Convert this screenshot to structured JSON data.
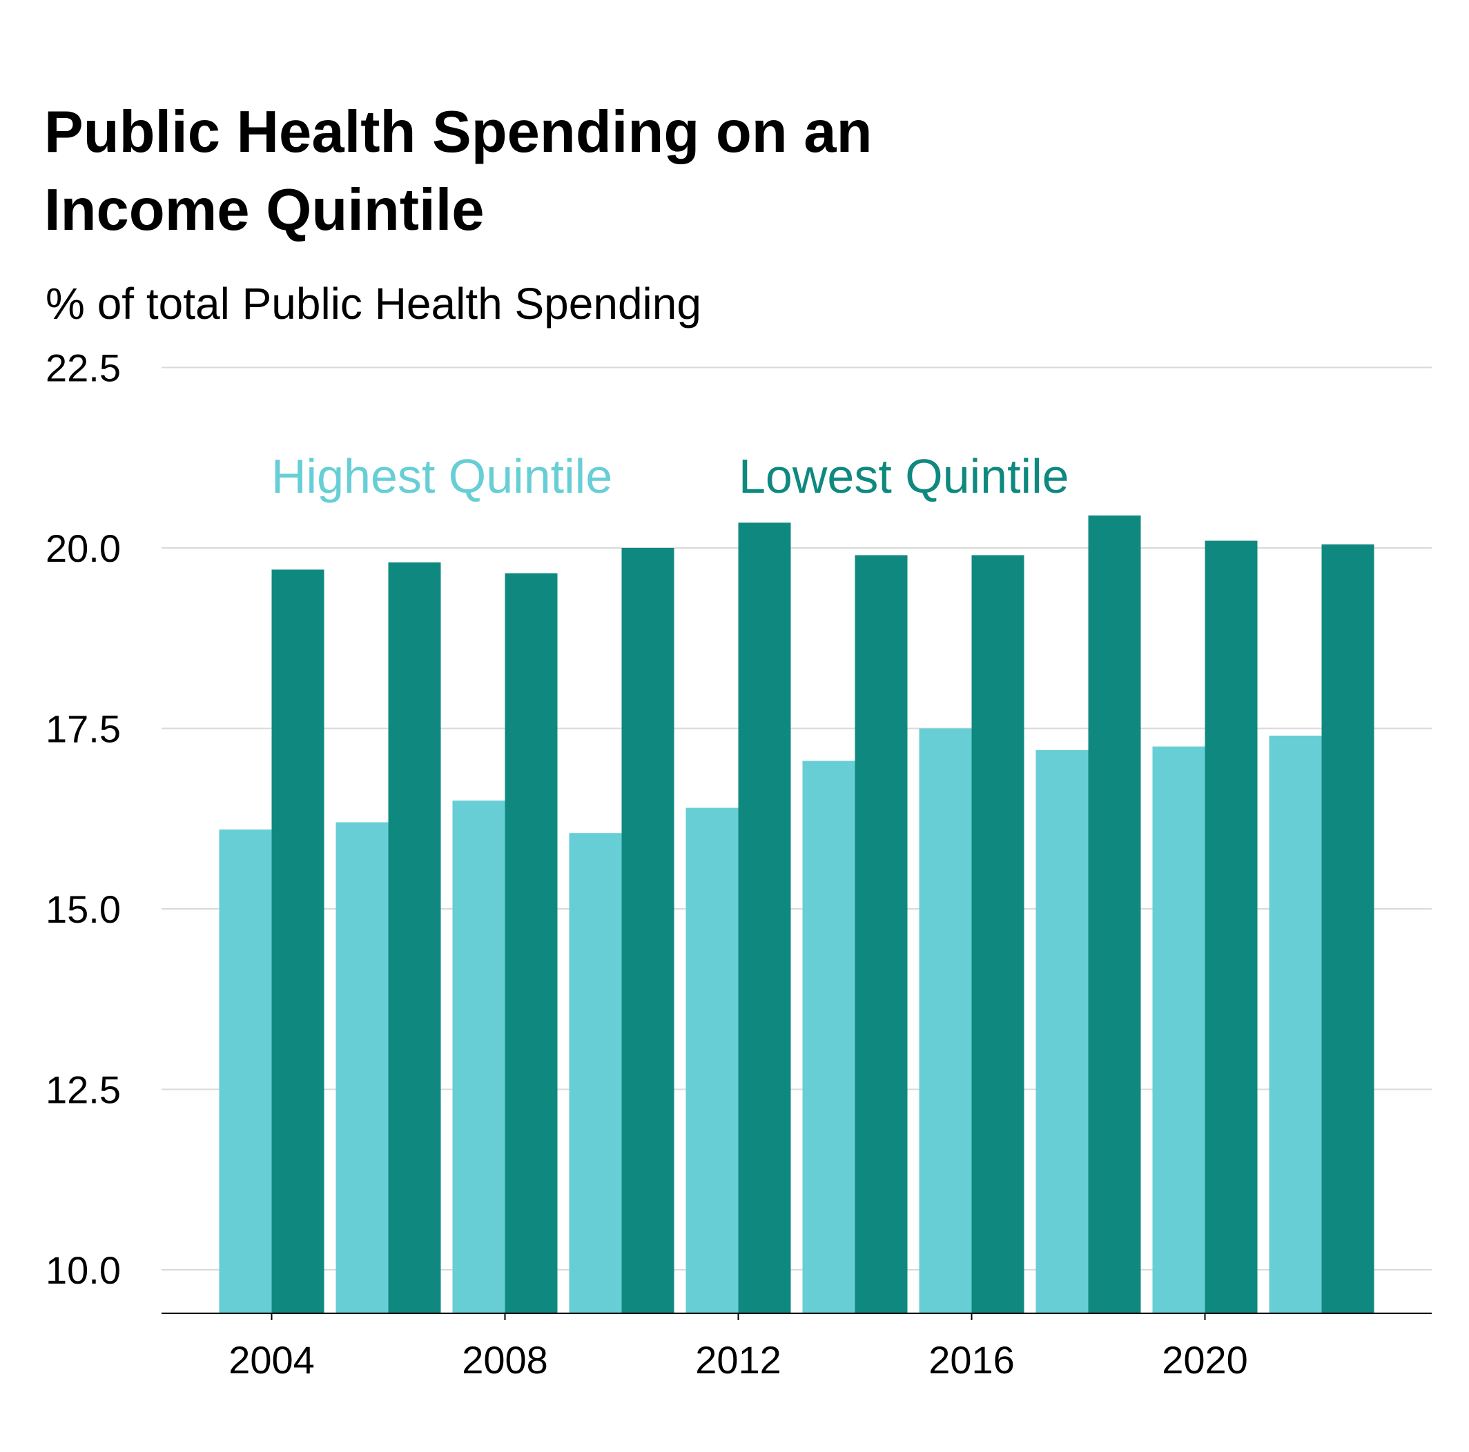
{
  "chart_data": {
    "type": "bar",
    "title_line1": "Public Health Spending on an",
    "title_line2": "Income Quintile",
    "subtitle": "% of total Public Health Spending",
    "xlabel": "",
    "ylabel": "",
    "x": [
      2004,
      2006,
      2008,
      2010,
      2012,
      2014,
      2016,
      2018,
      2020,
      2022
    ],
    "x_ticks": [
      2004,
      2008,
      2012,
      2016,
      2020
    ],
    "x_tick_labels": [
      "2004",
      "2008",
      "2012",
      "2016",
      "2020"
    ],
    "y_ticks": [
      10.0,
      12.5,
      15.0,
      17.5,
      20.0,
      22.5
    ],
    "y_tick_labels": [
      "10.0",
      "12.5",
      "15.0",
      "17.5",
      "20.0",
      "22.5"
    ],
    "ylim": [
      9.4,
      22.5
    ],
    "grid": true,
    "legend_placement": "inline-top",
    "series": [
      {
        "name": "Highest Quintile",
        "color": "#67ced6",
        "values": [
          16.1,
          16.2,
          16.5,
          16.05,
          16.4,
          17.05,
          17.5,
          17.2,
          17.25,
          17.4
        ]
      },
      {
        "name": "Lowest Quintile",
        "color": "#0f897f",
        "values": [
          19.7,
          19.8,
          19.65,
          20.0,
          20.35,
          19.9,
          19.9,
          20.45,
          20.1,
          20.05
        ]
      }
    ]
  }
}
